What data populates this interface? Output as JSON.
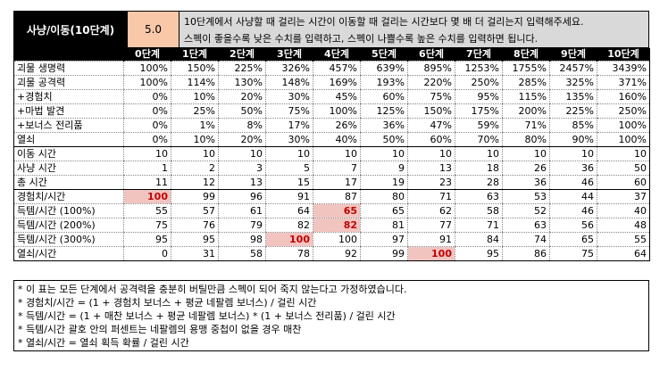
{
  "header": {
    "title": "사냥/이동(10단계)",
    "value": "5.0",
    "desc_line1": "10단계에서 사냥할 때 걸리는 시간이 이동할 때 걸리는 시간보다 몇 배 더 걸리는지 입력해주세요.",
    "desc_line2": "스펙이 좋을수록 낮은 수치를 입력하고, 스펙이 나쁠수록 높은 수치를 입력하면 됩니다."
  },
  "columns": [
    "",
    "0단계",
    "1단계",
    "2단계",
    "3단계",
    "4단계",
    "5단계",
    "6단계",
    "7단계",
    "8단계",
    "9단계",
    "10단계"
  ],
  "rows": [
    {
      "label": "괴물 생명력",
      "values": [
        "100%",
        "150%",
        "225%",
        "326%",
        "457%",
        "639%",
        "895%",
        "1253%",
        "1755%",
        "2457%",
        "3439%"
      ]
    },
    {
      "label": "괴물 공격력",
      "values": [
        "100%",
        "114%",
        "130%",
        "148%",
        "169%",
        "193%",
        "220%",
        "250%",
        "285%",
        "325%",
        "371%"
      ]
    },
    {
      "label": "+경험치",
      "values": [
        "0%",
        "10%",
        "20%",
        "30%",
        "45%",
        "60%",
        "75%",
        "95%",
        "115%",
        "135%",
        "160%"
      ]
    },
    {
      "label": "+마법 발견",
      "values": [
        "0%",
        "25%",
        "50%",
        "75%",
        "100%",
        "125%",
        "150%",
        "175%",
        "200%",
        "225%",
        "250%"
      ]
    },
    {
      "label": "+보너스 전리품",
      "values": [
        "0%",
        "1%",
        "8%",
        "17%",
        "26%",
        "36%",
        "47%",
        "59%",
        "71%",
        "85%",
        "100%"
      ]
    },
    {
      "label": "열쇠",
      "values": [
        "0%",
        "10%",
        "20%",
        "30%",
        "40%",
        "50%",
        "60%",
        "70%",
        "80%",
        "90%",
        "100%"
      ]
    },
    {
      "label": "이동 시간",
      "values": [
        "10",
        "10",
        "10",
        "10",
        "10",
        "10",
        "10",
        "10",
        "10",
        "10",
        "10"
      ]
    },
    {
      "label": "사냥 시간",
      "values": [
        "1",
        "2",
        "3",
        "5",
        "7",
        "9",
        "13",
        "18",
        "26",
        "36",
        "50"
      ]
    },
    {
      "label": "총 시간",
      "values": [
        "11",
        "12",
        "13",
        "15",
        "17",
        "19",
        "23",
        "28",
        "36",
        "46",
        "60"
      ]
    },
    {
      "label": "경험치/시간",
      "values": [
        "100",
        "99",
        "96",
        "91",
        "87",
        "80",
        "71",
        "63",
        "53",
        "44",
        "37"
      ]
    },
    {
      "label": "득템/시간 (100%)",
      "values": [
        "55",
        "57",
        "61",
        "64",
        "65",
        "65",
        "62",
        "58",
        "52",
        "46",
        "40"
      ]
    },
    {
      "label": "득템/시간 (200%)",
      "values": [
        "75",
        "76",
        "79",
        "82",
        "82",
        "81",
        "77",
        "71",
        "63",
        "56",
        "48"
      ]
    },
    {
      "label": "득템/시간 (300%)",
      "values": [
        "95",
        "95",
        "98",
        "100",
        "100",
        "97",
        "91",
        "84",
        "74",
        "65",
        "55"
      ]
    },
    {
      "label": "열쇠/시간",
      "values": [
        "0",
        "31",
        "58",
        "78",
        "92",
        "99",
        "100",
        "95",
        "86",
        "75",
        "64"
      ]
    }
  ],
  "notes": [
    "* 이 표는 모든 단계에서 공격력을 충분히 버틸만큼 스펙이 되어 죽지 않는다고 가정하였습니다.",
    "* 경험치/시간 = (1 + 경험치 보너스 + 평균 네팔렘 보너스) / 걸린 시간",
    "* 득템/시간 = (1 + 매찬 보너스 + 평균 네팔렘 보너스) * (1 + 보너스 전리품) / 걸린 시간",
    "* 득템/시간 괄호 안의 퍼센트는 네팔렘의 용맹 중첩이 없을 경우 매찬",
    "* 열쇠/시간 = 열쇠 획득 확률 / 걸린 시간"
  ]
}
